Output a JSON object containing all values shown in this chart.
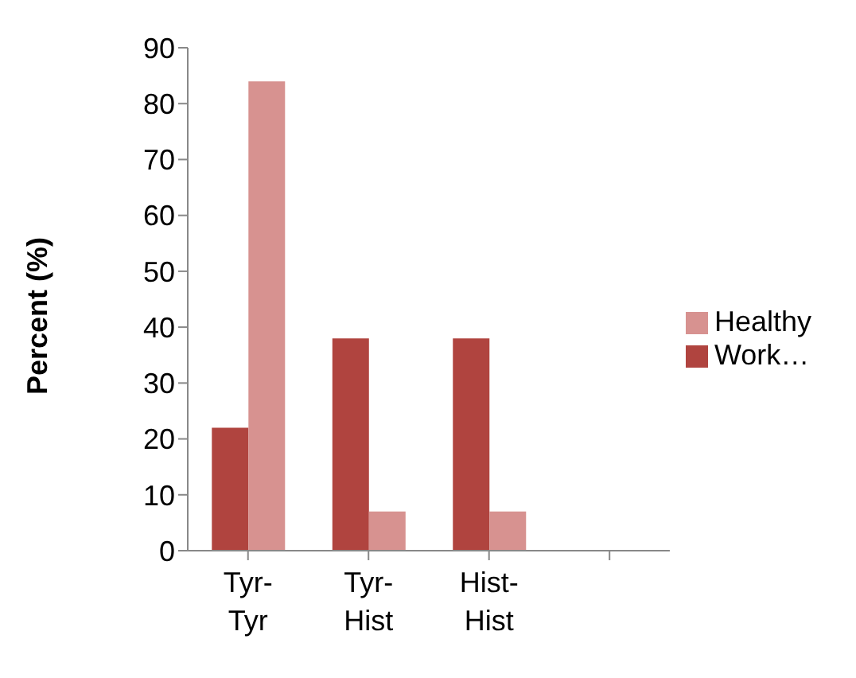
{
  "chart_data": {
    "type": "bar",
    "ylabel": "Percent (%)",
    "categories": [
      "Tyr-Tyr",
      "Tyr-Hist",
      "Hist-Hist",
      null
    ],
    "series": [
      {
        "name": "Work…",
        "color": "#b0443f",
        "values": [
          22,
          38,
          38,
          null
        ]
      },
      {
        "name": "Healthy",
        "color": "#d79290",
        "values": [
          84,
          7,
          7,
          null
        ]
      }
    ],
    "ylim": [
      0,
      90
    ],
    "yticks": [
      0,
      10,
      20,
      30,
      40,
      50,
      60,
      70,
      80,
      90
    ],
    "grid": false,
    "legend": "right"
  }
}
